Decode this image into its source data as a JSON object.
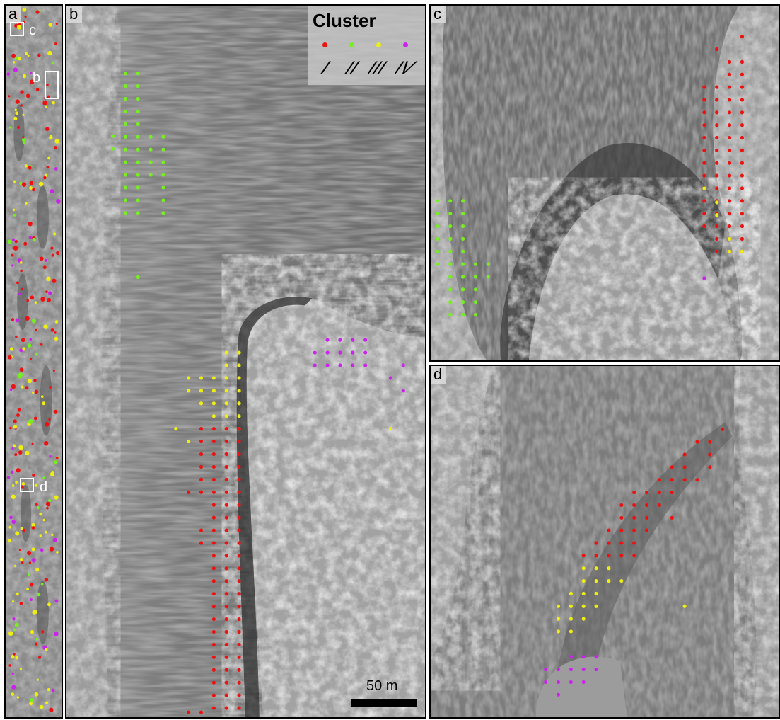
{
  "panels": {
    "a": {
      "label": "a",
      "insets": [
        {
          "label": "c"
        },
        {
          "label": "b"
        },
        {
          "label": "d"
        }
      ]
    },
    "b": {
      "label": "b"
    },
    "c": {
      "label": "c"
    },
    "d": {
      "label": "d"
    }
  },
  "legend": {
    "title": "Cluster",
    "items": [
      {
        "color": "#ee1111",
        "symbol": "I"
      },
      {
        "color": "#77ee22",
        "symbol": "II"
      },
      {
        "color": "#eeee11",
        "symbol": "III"
      },
      {
        "color": "#cc22ee",
        "symbol": "IV"
      }
    ]
  },
  "scale_bar": {
    "label": "50 m"
  }
}
